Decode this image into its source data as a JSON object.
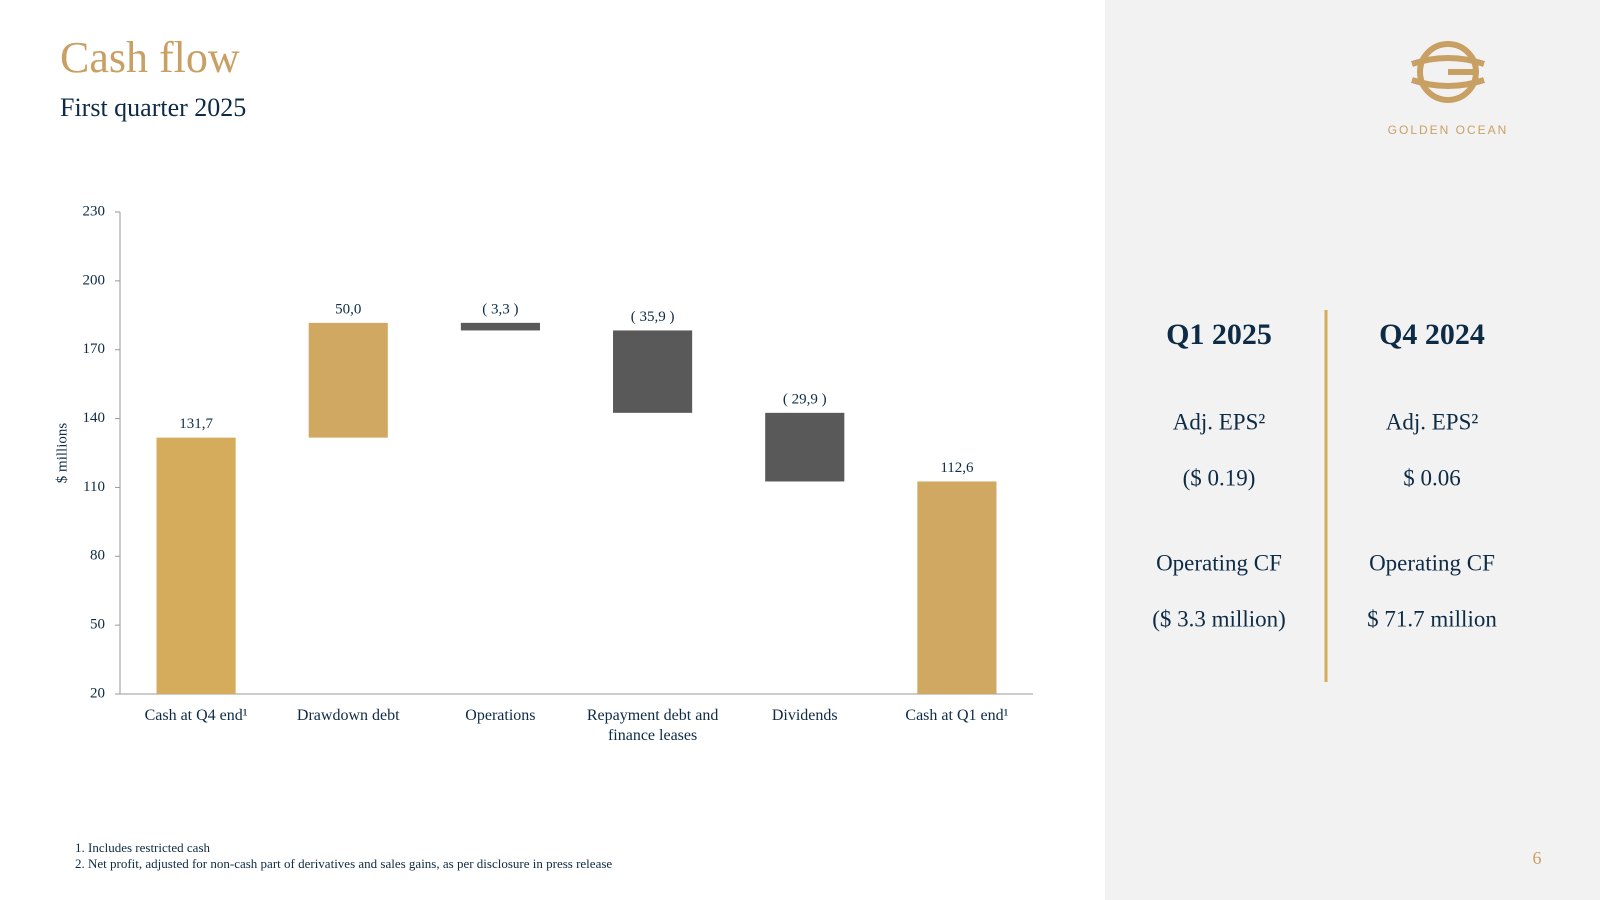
{
  "header": {
    "title": "Cash flow",
    "subtitle": "First quarter 2025"
  },
  "chart_data": {
    "type": "waterfall",
    "categories": [
      "Cash at Q4 end¹",
      "Drawdown debt",
      "Operations",
      "Repayment debt and finance leases",
      "Dividends",
      "Cash at Q1 end¹"
    ],
    "values": [
      131.7,
      50.0,
      -3.3,
      -35.9,
      -29.9,
      112.6
    ],
    "value_labels": [
      "131,7",
      "50,0",
      "( 3,3 )",
      "( 35,9 )",
      "( 29,9 )",
      "112,6"
    ],
    "measure": [
      "absolute",
      "relative",
      "relative",
      "relative",
      "relative",
      "absolute"
    ],
    "colors": [
      "#d4ac5b",
      "#d0a862",
      "#595959",
      "#595959",
      "#595959",
      "#d0a862"
    ],
    "ylabel": "$ millions",
    "ylim": [
      20,
      230
    ],
    "yticks": [
      20,
      50,
      80,
      110,
      140,
      170,
      200,
      230
    ]
  },
  "panel": {
    "columns": [
      {
        "heading": "Q1 2025",
        "rows": [
          {
            "label": "Adj. EPS²",
            "value": "($ 0.19)"
          },
          {
            "label": "Operating CF",
            "value": "($ 3.3 million)"
          }
        ]
      },
      {
        "heading": "Q4 2024",
        "rows": [
          {
            "label": "Adj. EPS²",
            "value": "$ 0.06"
          },
          {
            "label": "Operating CF",
            "value": "$ 71.7 million"
          }
        ]
      }
    ]
  },
  "logo": {
    "name": "GOLDEN OCEAN"
  },
  "footnotes": [
    "1. Includes restricted cash",
    "2. Net profit, adjusted for non-cash part of derivatives and sales gains, as per disclosure in press release"
  ],
  "page_number": "6"
}
